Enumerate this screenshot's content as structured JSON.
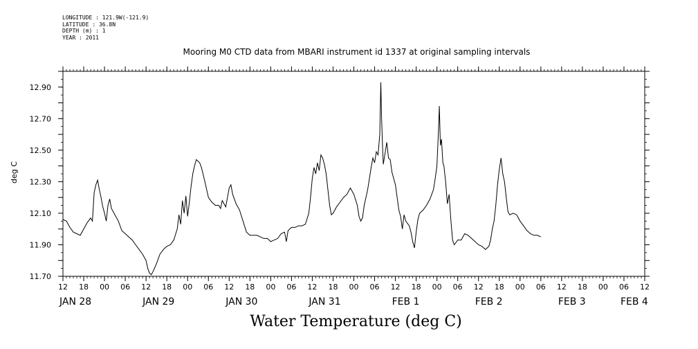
{
  "header": {
    "meta_lines": [
      "LONGITUDE : 121.9W(-121.9)",
      "LATITUDE : 36.8N",
      "DEPTH (m) : 1",
      "YEAR : 2011"
    ],
    "title": "Mooring M0 CTD data from MBARI instrument id 1337 at original sampling intervals"
  },
  "chart_data": {
    "type": "line",
    "title": "Water Temperature (deg C)",
    "ylabel": "deg C",
    "xlabel": "",
    "ylim": [
      11.7,
      13.0
    ],
    "yticks": [
      11.7,
      11.9,
      12.1,
      12.3,
      12.5,
      12.7,
      12.9
    ],
    "ytick_labels": [
      "11.70",
      "11.90",
      "12.10",
      "12.30",
      "12.50",
      "12.70",
      "12.90"
    ],
    "x_unit": "hours since 2011-01-28 12:00",
    "xlim": [
      0,
      168
    ],
    "hour_ticks": [
      "12",
      "18",
      "00",
      "06",
      "12",
      "18",
      "00",
      "06",
      "12",
      "18",
      "00",
      "06",
      "12",
      "18",
      "00",
      "06",
      "12",
      "18",
      "00",
      "06",
      "12",
      "18",
      "00",
      "06",
      "12",
      "18",
      "00",
      "06",
      "12"
    ],
    "day_labels": [
      {
        "text": "JAN 28",
        "hour": -1
      },
      {
        "text": "JAN 29",
        "hour": 23
      },
      {
        "text": "JAN 30",
        "hour": 47
      },
      {
        "text": "JAN 31",
        "hour": 71
      },
      {
        "text": "FEB  1",
        "hour": 95
      },
      {
        "text": "FEB  2",
        "hour": 119
      },
      {
        "text": "FEB  3",
        "hour": 143
      },
      {
        "text": "FEB  4",
        "hour": 161
      }
    ],
    "series": [
      {
        "points": [
          [
            0,
            12.06
          ],
          [
            1,
            12.05
          ],
          [
            2,
            12.01
          ],
          [
            3,
            11.98
          ],
          [
            4,
            11.97
          ],
          [
            5,
            11.96
          ],
          [
            6,
            12.0
          ],
          [
            7,
            12.04
          ],
          [
            8,
            12.07
          ],
          [
            8.5,
            12.05
          ],
          [
            9,
            12.23
          ],
          [
            9.5,
            12.28
          ],
          [
            10,
            12.31
          ],
          [
            10.5,
            12.25
          ],
          [
            11,
            12.2
          ],
          [
            11.5,
            12.14
          ],
          [
            12,
            12.1
          ],
          [
            12.5,
            12.05
          ],
          [
            13,
            12.15
          ],
          [
            13.5,
            12.19
          ],
          [
            14,
            12.13
          ],
          [
            15,
            12.09
          ],
          [
            16,
            12.05
          ],
          [
            17,
            11.99
          ],
          [
            18,
            11.97
          ],
          [
            19,
            11.95
          ],
          [
            20,
            11.93
          ],
          [
            21,
            11.9
          ],
          [
            22,
            11.87
          ],
          [
            23,
            11.84
          ],
          [
            24,
            11.8
          ],
          [
            24.5,
            11.75
          ],
          [
            25,
            11.72
          ],
          [
            25.5,
            11.71
          ],
          [
            26,
            11.73
          ],
          [
            27,
            11.78
          ],
          [
            28,
            11.84
          ],
          [
            29,
            11.87
          ],
          [
            30,
            11.89
          ],
          [
            31,
            11.9
          ],
          [
            32,
            11.93
          ],
          [
            33,
            12.0
          ],
          [
            33.5,
            12.09
          ],
          [
            34,
            12.03
          ],
          [
            34.5,
            12.18
          ],
          [
            35,
            12.1
          ],
          [
            35.5,
            12.21
          ],
          [
            36,
            12.08
          ],
          [
            36.5,
            12.17
          ],
          [
            37,
            12.27
          ],
          [
            37.5,
            12.35
          ],
          [
            38,
            12.4
          ],
          [
            38.5,
            12.44
          ],
          [
            39,
            12.43
          ],
          [
            39.5,
            12.42
          ],
          [
            40,
            12.39
          ],
          [
            41,
            12.3
          ],
          [
            42,
            12.2
          ],
          [
            43,
            12.17
          ],
          [
            44,
            12.15
          ],
          [
            45,
            12.15
          ],
          [
            45.5,
            12.13
          ],
          [
            46,
            12.18
          ],
          [
            47,
            12.14
          ],
          [
            48,
            12.26
          ],
          [
            48.5,
            12.28
          ],
          [
            49,
            12.22
          ],
          [
            50,
            12.16
          ],
          [
            51,
            12.12
          ],
          [
            52,
            12.05
          ],
          [
            53,
            11.98
          ],
          [
            54,
            11.96
          ],
          [
            55,
            11.96
          ],
          [
            56,
            11.96
          ],
          [
            57,
            11.95
          ],
          [
            58,
            11.94
          ],
          [
            59,
            11.94
          ],
          [
            60,
            11.92
          ],
          [
            61,
            11.93
          ],
          [
            62,
            11.94
          ],
          [
            63,
            11.97
          ],
          [
            64,
            11.98
          ],
          [
            64.5,
            11.92
          ],
          [
            65,
            11.99
          ],
          [
            66,
            12.01
          ],
          [
            67,
            12.01
          ],
          [
            68,
            12.02
          ],
          [
            69,
            12.02
          ],
          [
            70,
            12.03
          ],
          [
            71,
            12.1
          ],
          [
            71.5,
            12.2
          ],
          [
            72,
            12.32
          ],
          [
            72.5,
            12.39
          ],
          [
            73,
            12.35
          ],
          [
            73.5,
            12.42
          ],
          [
            74,
            12.37
          ],
          [
            74.5,
            12.47
          ],
          [
            75,
            12.45
          ],
          [
            75.5,
            12.41
          ],
          [
            76,
            12.35
          ],
          [
            76.5,
            12.25
          ],
          [
            77,
            12.15
          ],
          [
            77.5,
            12.09
          ],
          [
            78,
            12.1
          ],
          [
            79,
            12.14
          ],
          [
            80,
            12.17
          ],
          [
            81,
            12.2
          ],
          [
            82,
            12.22
          ],
          [
            82.5,
            12.24
          ],
          [
            83,
            12.26
          ],
          [
            84,
            12.22
          ],
          [
            85,
            12.15
          ],
          [
            85.5,
            12.08
          ],
          [
            86,
            12.05
          ],
          [
            86.5,
            12.07
          ],
          [
            87,
            12.15
          ],
          [
            88,
            12.25
          ],
          [
            88.5,
            12.32
          ],
          [
            89,
            12.39
          ],
          [
            89.5,
            12.45
          ],
          [
            90,
            12.42
          ],
          [
            90.5,
            12.49
          ],
          [
            91,
            12.47
          ],
          [
            91.5,
            12.6
          ],
          [
            91.8,
            12.93
          ],
          [
            92,
            12.72
          ],
          [
            92.3,
            12.52
          ],
          [
            92.5,
            12.41
          ],
          [
            93,
            12.48
          ],
          [
            93.5,
            12.55
          ],
          [
            94,
            12.45
          ],
          [
            94.5,
            12.44
          ],
          [
            95,
            12.36
          ],
          [
            96,
            12.28
          ],
          [
            96.5,
            12.2
          ],
          [
            97,
            12.12
          ],
          [
            97.5,
            12.08
          ],
          [
            98,
            12.0
          ],
          [
            98.5,
            12.09
          ],
          [
            99,
            12.05
          ],
          [
            100,
            12.02
          ],
          [
            100.5,
            11.98
          ],
          [
            101,
            11.92
          ],
          [
            101.5,
            11.88
          ],
          [
            102,
            11.98
          ],
          [
            102.5,
            12.06
          ],
          [
            103,
            12.1
          ],
          [
            104,
            12.12
          ],
          [
            105,
            12.15
          ],
          [
            106,
            12.19
          ],
          [
            107,
            12.25
          ],
          [
            107.5,
            12.32
          ],
          [
            108,
            12.4
          ],
          [
            108.5,
            12.65
          ],
          [
            108.7,
            12.78
          ],
          [
            109,
            12.53
          ],
          [
            109.3,
            12.57
          ],
          [
            109.7,
            12.42
          ],
          [
            110,
            12.4
          ],
          [
            110.5,
            12.3
          ],
          [
            111,
            12.16
          ],
          [
            111.5,
            12.22
          ],
          [
            112,
            12.06
          ],
          [
            112.5,
            11.93
          ],
          [
            113,
            11.9
          ],
          [
            114,
            11.93
          ],
          [
            115,
            11.93
          ],
          [
            116,
            11.97
          ],
          [
            117,
            11.96
          ],
          [
            118,
            11.94
          ],
          [
            119,
            11.92
          ],
          [
            120,
            11.9
          ],
          [
            121,
            11.89
          ],
          [
            121.5,
            11.88
          ],
          [
            122,
            11.87
          ],
          [
            123,
            11.89
          ],
          [
            123.5,
            11.93
          ],
          [
            124,
            12.0
          ],
          [
            124.5,
            12.05
          ],
          [
            125,
            12.15
          ],
          [
            125.5,
            12.28
          ],
          [
            126,
            12.38
          ],
          [
            126.5,
            12.45
          ],
          [
            127,
            12.35
          ],
          [
            127.5,
            12.3
          ],
          [
            128,
            12.2
          ],
          [
            128.5,
            12.11
          ],
          [
            129,
            12.09
          ],
          [
            130,
            12.1
          ],
          [
            131,
            12.09
          ],
          [
            132,
            12.05
          ],
          [
            133,
            12.02
          ],
          [
            134,
            11.99
          ],
          [
            135,
            11.97
          ],
          [
            136,
            11.96
          ],
          [
            137,
            11.96
          ],
          [
            138,
            11.95
          ]
        ]
      }
    ]
  }
}
